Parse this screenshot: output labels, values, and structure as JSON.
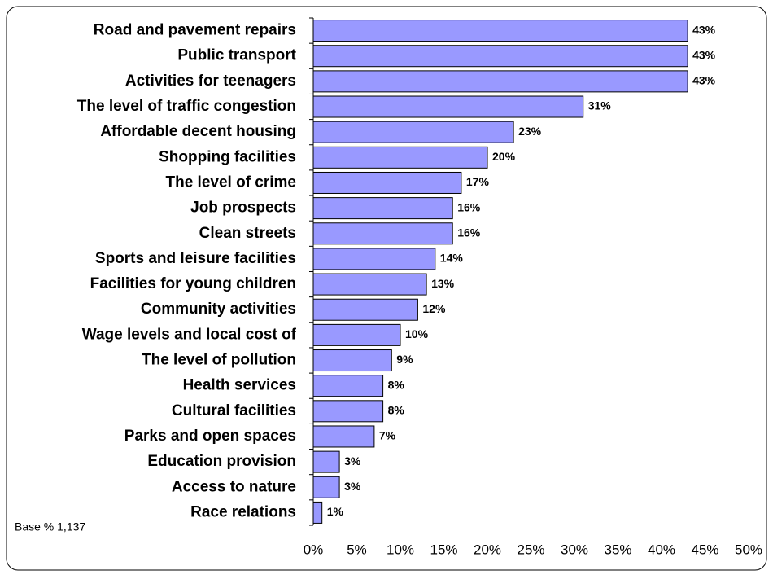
{
  "chart_data": {
    "type": "bar",
    "orientation": "horizontal",
    "categories": [
      "Road and pavement repairs",
      "Public transport",
      "Activities for teenagers",
      "The level of traffic congestion",
      "Affordable decent housing",
      "Shopping facilities",
      "The level of crime",
      "Job prospects",
      "Clean streets",
      "Sports and leisure facilities",
      "Facilities for young children",
      "Community activities",
      "Wage levels and local cost of",
      "The level of pollution",
      "Health services",
      "Cultural facilities",
      "Parks and open spaces",
      "Education provision",
      "Access to nature",
      "Race relations"
    ],
    "values": [
      43,
      43,
      43,
      31,
      23,
      20,
      17,
      16,
      16,
      14,
      13,
      12,
      10,
      9,
      8,
      8,
      7,
      3,
      3,
      1
    ],
    "value_labels": [
      "43%",
      "43%",
      "43%",
      "31%",
      "23%",
      "20%",
      "17%",
      "16%",
      "16%",
      "14%",
      "13%",
      "12%",
      "10%",
      "9%",
      "8%",
      "8%",
      "7%",
      "3%",
      "3%",
      "1%"
    ],
    "color": "#9999ff",
    "xlim": [
      0,
      50
    ],
    "xticks": [
      {
        "value": 0,
        "label": "0%"
      },
      {
        "value": 5,
        "label": "5%"
      },
      {
        "value": 10,
        "label": "10%"
      },
      {
        "value": 15,
        "label": "15%"
      },
      {
        "value": 20,
        "label": "20%"
      },
      {
        "value": 25,
        "label": "25%"
      },
      {
        "value": 30,
        "label": "30%"
      },
      {
        "value": 35,
        "label": "35%"
      },
      {
        "value": 40,
        "label": "40%"
      },
      {
        "value": 45,
        "label": "45%"
      },
      {
        "value": 50,
        "label": "50%"
      }
    ],
    "annotation": "Base % 1,137",
    "grid": false
  }
}
